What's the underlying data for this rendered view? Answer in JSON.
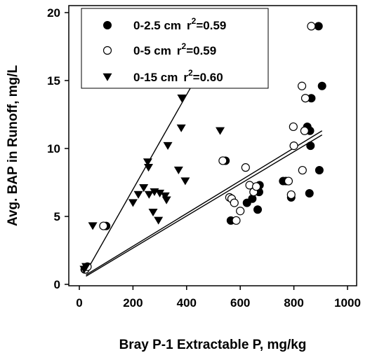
{
  "chart_data": {
    "type": "scatter",
    "xlabel": "Bray P-1 Extractable P, mg/kg",
    "ylabel": "Avg. BAP in Runoff, mg/L",
    "xlim": [
      0,
      1000
    ],
    "ylim": [
      0,
      20
    ],
    "xticks": [
      "0",
      "200",
      "400",
      "600",
      "800",
      "1000"
    ],
    "yticks": [
      "0",
      "5",
      "10",
      "15",
      "20"
    ],
    "grid": false,
    "legend_position": "top-left",
    "series": [
      {
        "name": "0-2.5 cm",
        "r2_label": "r2=0.59",
        "r2_main": "r",
        "r2_sup": "2",
        "r2_value": "=0.59",
        "marker": "filled-circle",
        "points": [
          [
            20,
            1.1
          ],
          [
            100,
            4.3
          ],
          [
            545,
            9.1
          ],
          [
            565,
            4.7
          ],
          [
            625,
            6.0
          ],
          [
            645,
            6.3
          ],
          [
            665,
            5.5
          ],
          [
            670,
            6.8
          ],
          [
            672,
            7.3
          ],
          [
            760,
            7.6
          ],
          [
            790,
            6.4
          ],
          [
            850,
            11.6
          ],
          [
            858,
            6.7
          ],
          [
            860,
            11.3
          ],
          [
            862,
            10.2
          ],
          [
            865,
            13.7
          ],
          [
            892,
            19.0
          ],
          [
            895,
            8.4
          ],
          [
            905,
            14.6
          ],
          [
            770,
            7.6
          ]
        ],
        "fit": [
          [
            25,
            0.6
          ],
          [
            905,
            11.0
          ]
        ]
      },
      {
        "name": "0-5 cm",
        "r2_label": "r2=0.59",
        "r2_main": "r",
        "r2_sup": "2",
        "r2_value": "=0.59",
        "marker": "open-circle",
        "points": [
          [
            22,
            1.1
          ],
          [
            30,
            1.3
          ],
          [
            90,
            4.3
          ],
          [
            535,
            9.1
          ],
          [
            560,
            6.4
          ],
          [
            568,
            6.3
          ],
          [
            578,
            6.0
          ],
          [
            585,
            4.7
          ],
          [
            600,
            5.4
          ],
          [
            620,
            8.6
          ],
          [
            635,
            7.3
          ],
          [
            650,
            6.8
          ],
          [
            660,
            7.2
          ],
          [
            780,
            7.6
          ],
          [
            790,
            6.6
          ],
          [
            798,
            11.6
          ],
          [
            800,
            10.2
          ],
          [
            830,
            14.6
          ],
          [
            832,
            8.4
          ],
          [
            840,
            11.3
          ],
          [
            843,
            13.7
          ],
          [
            865,
            19.0
          ]
        ],
        "fit": [
          [
            25,
            0.7
          ],
          [
            905,
            11.3
          ]
        ]
      },
      {
        "name": "0-15 cm",
        "r2_label": "r2=0.60",
        "r2_main": "r",
        "r2_sup": "2",
        "r2_value": "=0.60",
        "marker": "filled-triangle-down",
        "points": [
          [
            18,
            1.1
          ],
          [
            25,
            1.3
          ],
          [
            50,
            4.3
          ],
          [
            200,
            6.0
          ],
          [
            220,
            6.6
          ],
          [
            240,
            7.1
          ],
          [
            255,
            9.0
          ],
          [
            258,
            8.6
          ],
          [
            260,
            6.6
          ],
          [
            275,
            5.3
          ],
          [
            280,
            6.8
          ],
          [
            295,
            4.7
          ],
          [
            300,
            6.7
          ],
          [
            320,
            6.5
          ],
          [
            325,
            6.2
          ],
          [
            330,
            10.2
          ],
          [
            370,
            8.4
          ],
          [
            380,
            11.5
          ],
          [
            382,
            13.7
          ],
          [
            395,
            7.6
          ],
          [
            525,
            11.3
          ]
        ],
        "fit": [
          [
            25,
            0.9
          ],
          [
            542,
            18.9
          ]
        ]
      }
    ]
  }
}
